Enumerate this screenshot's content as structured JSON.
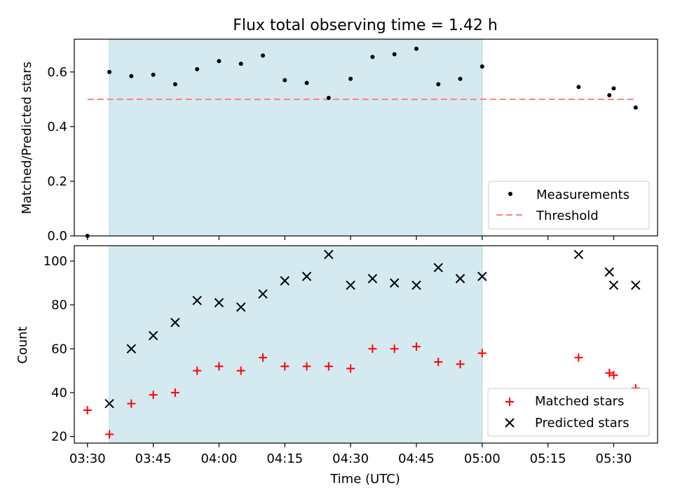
{
  "figure": {
    "title": "Flux total observing time = 1.42 h"
  },
  "colors": {
    "span": "#d4eaf0",
    "span_edge": "#a8d6e2",
    "measurement": "#000000",
    "threshold": "#ff7f7f",
    "matched": "#ff0000",
    "predicted": "#000000"
  },
  "chart_data": [
    {
      "type": "scatter",
      "title": "Flux total observing time = 1.42 h",
      "xlabel": "",
      "ylabel": "Matched/Predicted stars",
      "xlim": [
        "03:27",
        "05:40"
      ],
      "ylim": [
        0,
        0.72
      ],
      "yticks": [
        0.0,
        0.2,
        0.4,
        0.6
      ],
      "ytick_labels": [
        "0.0",
        "0.2",
        "0.4",
        "0.6"
      ],
      "highlight_span": [
        "03:35",
        "05:00"
      ],
      "threshold": {
        "name": "Threshold",
        "value": 0.5,
        "from": "03:30",
        "to": "05:35"
      },
      "legend": {
        "placement": "lower-right",
        "entries": [
          "Measurements",
          "Threshold"
        ]
      },
      "series": [
        {
          "name": "Measurements",
          "x": [
            "03:30",
            "03:35",
            "03:40",
            "03:45",
            "03:50",
            "03:55",
            "04:00",
            "04:05",
            "04:10",
            "04:15",
            "04:20",
            "04:25",
            "04:30",
            "04:35",
            "04:40",
            "04:45",
            "04:50",
            "04:55",
            "05:00",
            "05:22",
            "05:29",
            "05:30",
            "05:35"
          ],
          "y": [
            0.0,
            0.6,
            0.585,
            0.59,
            0.555,
            0.61,
            0.64,
            0.63,
            0.66,
            0.57,
            0.56,
            0.505,
            0.575,
            0.655,
            0.665,
            0.685,
            0.555,
            0.575,
            0.62,
            0.545,
            0.515,
            0.54,
            0.47
          ]
        }
      ]
    },
    {
      "type": "scatter",
      "xlabel": "Time (UTC)",
      "ylabel": "Count",
      "xlim": [
        "03:27",
        "05:40"
      ],
      "ylim": [
        17,
        107
      ],
      "xticks": [
        "03:30",
        "03:45",
        "04:00",
        "04:15",
        "04:30",
        "04:45",
        "05:00",
        "05:15",
        "05:30"
      ],
      "yticks": [
        20,
        40,
        60,
        80,
        100
      ],
      "ytick_labels": [
        "20",
        "40",
        "60",
        "80",
        "100"
      ],
      "highlight_span": [
        "03:35",
        "05:00"
      ],
      "legend": {
        "placement": "lower-right",
        "entries": [
          "Matched stars",
          "Predicted stars"
        ]
      },
      "series": [
        {
          "name": "Matched stars",
          "marker": "plus",
          "x": [
            "03:30",
            "03:35",
            "03:40",
            "03:45",
            "03:50",
            "03:55",
            "04:00",
            "04:05",
            "04:10",
            "04:15",
            "04:20",
            "04:25",
            "04:30",
            "04:35",
            "04:40",
            "04:45",
            "04:50",
            "04:55",
            "05:00",
            "05:22",
            "05:29",
            "05:30",
            "05:35"
          ],
          "y": [
            32,
            21,
            35,
            39,
            40,
            50,
            52,
            50,
            56,
            52,
            52,
            52,
            51,
            60,
            60,
            61,
            54,
            53,
            58,
            56,
            49,
            48,
            42
          ]
        },
        {
          "name": "Predicted stars",
          "marker": "x",
          "x": [
            "03:35",
            "03:40",
            "03:45",
            "03:50",
            "03:55",
            "04:00",
            "04:05",
            "04:10",
            "04:15",
            "04:20",
            "04:25",
            "04:30",
            "04:35",
            "04:40",
            "04:45",
            "04:50",
            "04:55",
            "05:00",
            "05:22",
            "05:29",
            "05:30",
            "05:35"
          ],
          "y": [
            35,
            60,
            66,
            72,
            82,
            81,
            79,
            85,
            91,
            93,
            103,
            89,
            92,
            90,
            89,
            97,
            92,
            93,
            103,
            95,
            89,
            89
          ]
        }
      ]
    }
  ]
}
